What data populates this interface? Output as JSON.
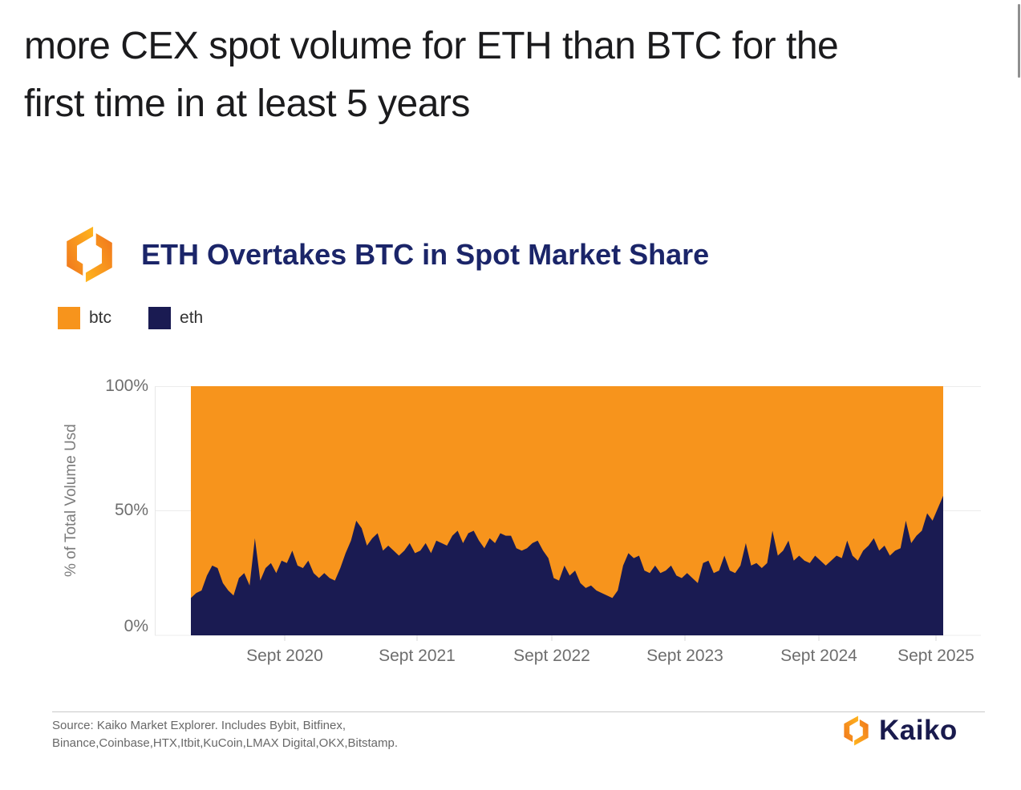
{
  "page": {
    "heading_line1": "more CEX spot volume for ETH than BTC for the",
    "heading_line2": "first time in at least 5 years"
  },
  "chart_header": {
    "title": "ETH Overtakes BTC in Spot Market Share",
    "logo": "kaiko-mark"
  },
  "legend": [
    {
      "label": "btc",
      "color": "#F7941C"
    },
    {
      "label": "eth",
      "color": "#1A1B52"
    }
  ],
  "chart_data": {
    "type": "area",
    "stacked_percent": true,
    "title": "ETH Overtakes BTC in Spot Market Share",
    "ylabel": "% of Total Volume Usd",
    "ylim": [
      0,
      100
    ],
    "y_tick_labels": [
      "100%",
      "50%",
      "0%"
    ],
    "x_tick_labels": [
      "Sept 2020",
      "Sept 2021",
      "Sept 2022",
      "Sept 2023",
      "Sept 2024",
      "Sept 2025"
    ],
    "x_range_start": "early 2020",
    "x_range_end": "Sept 2025",
    "grid": true,
    "legend_position": "top-left",
    "series": [
      {
        "name": "btc",
        "color": "#F7941C",
        "derived": "100 minus eth share at every point"
      },
      {
        "name": "eth",
        "color": "#1A1B52",
        "unit": "% of total spot volume USD",
        "values": [
          15,
          17,
          18,
          24,
          28,
          27,
          21,
          18,
          16,
          23,
          25,
          20,
          39,
          22,
          27,
          29,
          25,
          30,
          29,
          34,
          28,
          27,
          30,
          25,
          23,
          25,
          23,
          22,
          27,
          33,
          38,
          46,
          43,
          36,
          39,
          41,
          34,
          36,
          34,
          32,
          34,
          37,
          33,
          34,
          37,
          33,
          38,
          37,
          36,
          40,
          42,
          37,
          41,
          42,
          38,
          35,
          39,
          37,
          41,
          40,
          40,
          35,
          34,
          35,
          37,
          38,
          34,
          31,
          23,
          22,
          28,
          24,
          26,
          21,
          19,
          20,
          18,
          17,
          16,
          15,
          18,
          28,
          33,
          31,
          32,
          26,
          25,
          28,
          25,
          26,
          28,
          24,
          23,
          25,
          23,
          21,
          29,
          30,
          25,
          26,
          32,
          26,
          25,
          28,
          37,
          28,
          29,
          27,
          29,
          42,
          32,
          34,
          38,
          30,
          32,
          30,
          29,
          32,
          30,
          28,
          30,
          32,
          31,
          38,
          32,
          30,
          34,
          36,
          39,
          34,
          36,
          32,
          34,
          35,
          46,
          37,
          40,
          42,
          49,
          46,
          51,
          56
        ]
      }
    ]
  },
  "footer": {
    "source_line1": "Source: Kaiko Market Explorer. Includes Bybit, Bitfinex,",
    "source_line2": "Binance,Coinbase,HTX,Itbit,KuCoin,LMAX Digital,OKX,Bitstamp.",
    "brand": "Kaiko"
  }
}
